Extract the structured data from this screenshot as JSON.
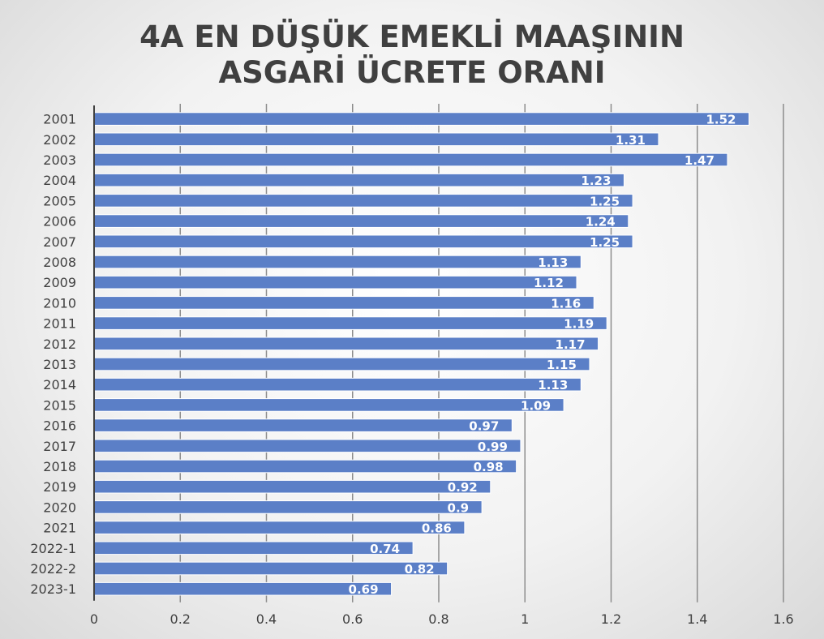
{
  "chart_data": {
    "type": "bar",
    "orientation": "horizontal",
    "title": [
      "4A EN DÜŞÜK EMEKLİ MAAŞININ",
      "ASGARİ ÜCRETE ORANI"
    ],
    "categories": [
      "2001",
      "2002",
      "2003",
      "2004",
      "2005",
      "2006",
      "2007",
      "2008",
      "2009",
      "2010",
      "2011",
      "2012",
      "2013",
      "2014",
      "2015",
      "2016",
      "2017",
      "2018",
      "2019",
      "2020",
      "2021",
      "2022-1",
      "2022-2",
      "2023-1"
    ],
    "values": [
      1.52,
      1.31,
      1.47,
      1.23,
      1.25,
      1.24,
      1.25,
      1.13,
      1.12,
      1.16,
      1.19,
      1.17,
      1.15,
      1.13,
      1.09,
      0.97,
      0.99,
      0.98,
      0.92,
      0.9,
      0.86,
      0.74,
      0.82,
      0.69
    ],
    "data_labels": [
      "1.52",
      "1.31",
      "1.47",
      "1.23",
      "1.25",
      "1.24",
      "1.25",
      "1.13",
      "1.12",
      "1.16",
      "1.19",
      "1.17",
      "1.15",
      "1.13",
      "1.09",
      "0.97",
      "0.99",
      "0.98",
      "0.92",
      "0.9",
      "0.86",
      "0.74",
      "0.82",
      "0.69"
    ],
    "xlim": [
      0,
      1.6
    ],
    "x_ticks": [
      "0",
      "0.2",
      "0.4",
      "0.6",
      "0.8",
      "1",
      "1.2",
      "1.4",
      "1.6"
    ],
    "xlabel": "",
    "ylabel": "",
    "grid": true,
    "legend": "none",
    "bar_color": "#5b7fc7",
    "bar_border_color": "#ffffff",
    "grid_color": "#8c8c8c"
  }
}
